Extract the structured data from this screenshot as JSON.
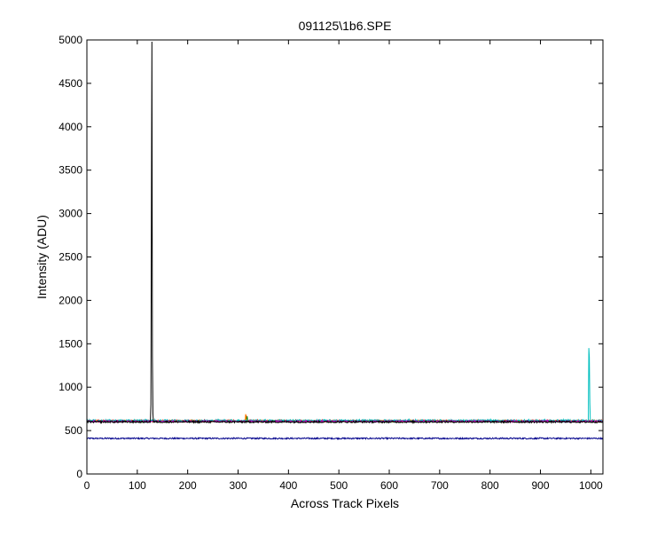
{
  "chart_data": {
    "type": "line",
    "title": "091125\\1b6.SPE",
    "xlabel": "Across Track Pixels",
    "ylabel": "Intensity (ADU)",
    "xlim": [
      0,
      1024
    ],
    "ylim": [
      0,
      5000
    ],
    "xticks": [
      0,
      100,
      200,
      300,
      400,
      500,
      600,
      700,
      800,
      900,
      1000
    ],
    "yticks": [
      0,
      500,
      1000,
      1500,
      2000,
      2500,
      3000,
      3500,
      4000,
      4500,
      5000
    ],
    "grid": false,
    "legend": "none",
    "series": [
      {
        "color": "#00008b",
        "baseline": 410,
        "noise": 8,
        "spikes": []
      },
      {
        "color": "#ff0000",
        "baseline": 612,
        "noise": 10,
        "spikes": [
          {
            "x": 316,
            "y": 680
          }
        ]
      },
      {
        "color": "#008000",
        "baseline": 608,
        "noise": 10,
        "spikes": [
          {
            "x": 318,
            "y": 665
          }
        ]
      },
      {
        "color": "#ff8c00",
        "baseline": 610,
        "noise": 10,
        "spikes": [
          {
            "x": 315,
            "y": 690
          }
        ]
      },
      {
        "color": "#00bfbf",
        "baseline": 614,
        "noise": 12,
        "spikes": [
          {
            "x": 996,
            "y": 1450
          },
          {
            "x": 997,
            "y": 1350
          },
          {
            "x": 998,
            "y": 820
          }
        ]
      },
      {
        "color": "#c000c0",
        "baseline": 606,
        "noise": 9,
        "spikes": []
      },
      {
        "color": "#000000",
        "baseline": 600,
        "noise": 10,
        "spikes": [
          {
            "x": 127,
            "y": 800
          },
          {
            "x": 128,
            "y": 2940
          },
          {
            "x": 129,
            "y": 4980
          },
          {
            "x": 130,
            "y": 1360
          },
          {
            "x": 131,
            "y": 700
          }
        ]
      }
    ]
  }
}
